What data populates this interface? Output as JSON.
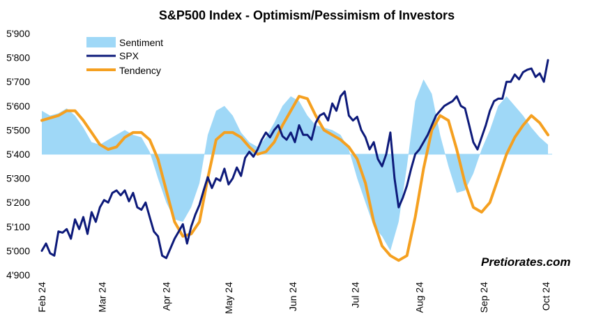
{
  "chart_data": {
    "type": "line",
    "title": "S&P500 Index - Optimism/Pessimism of Investors",
    "xlabel": "",
    "ylabel": "",
    "ylim": [
      4900,
      5900
    ],
    "y_ticks": [
      "5'900",
      "5'800",
      "5'700",
      "5'600",
      "5'500",
      "5'400",
      "5'300",
      "5'200",
      "5'100",
      "5'000",
      "4'900"
    ],
    "y_tick_values": [
      5900,
      5800,
      5700,
      5600,
      5500,
      5400,
      5300,
      5200,
      5100,
      5000,
      4900
    ],
    "xlim": [
      0,
      246
    ],
    "x_ticks": [
      "Feb 24",
      "Mar 24",
      "Apr 24",
      "May 24",
      "Jun 24",
      "Jul 24",
      "Aug 24",
      "Sep 24",
      "Oct 24"
    ],
    "x_tick_days": [
      0,
      29,
      60,
      90,
      121,
      151,
      182,
      213,
      243
    ],
    "sentiment_baseline": 5400,
    "grid": false,
    "legend_position": "top-left",
    "watermark": "Pretiorates.com",
    "colors": {
      "sentiment": "#9fd8f7",
      "spx": "#0d1a7a",
      "tendency": "#f5a020"
    },
    "series": [
      {
        "name": "Sentiment",
        "style": "area",
        "x": [
          0,
          4,
          8,
          12,
          16,
          20,
          24,
          28,
          32,
          36,
          40,
          44,
          48,
          52,
          56,
          60,
          64,
          68,
          72,
          76,
          80,
          84,
          88,
          92,
          96,
          100,
          104,
          108,
          112,
          116,
          120,
          124,
          128,
          132,
          136,
          140,
          144,
          148,
          152,
          156,
          160,
          164,
          168,
          172,
          176,
          180,
          184,
          188,
          192,
          196,
          200,
          204,
          208,
          212,
          216,
          220,
          224,
          228,
          232,
          236,
          240,
          244
        ],
        "values": [
          5580,
          5560,
          5570,
          5590,
          5560,
          5510,
          5450,
          5440,
          5460,
          5480,
          5500,
          5480,
          5470,
          5410,
          5300,
          5200,
          5130,
          5120,
          5180,
          5280,
          5480,
          5580,
          5600,
          5560,
          5490,
          5450,
          5430,
          5470,
          5530,
          5600,
          5640,
          5620,
          5560,
          5520,
          5510,
          5500,
          5480,
          5420,
          5300,
          5200,
          5100,
          5060,
          5000,
          5120,
          5350,
          5620,
          5710,
          5650,
          5480,
          5350,
          5240,
          5250,
          5320,
          5420,
          5500,
          5600,
          5640,
          5600,
          5560,
          5510,
          5470,
          5440
        ]
      },
      {
        "name": "SPX",
        "style": "line",
        "x": [
          0,
          2,
          4,
          6,
          8,
          10,
          12,
          14,
          16,
          18,
          20,
          22,
          24,
          26,
          28,
          30,
          32,
          34,
          36,
          38,
          40,
          42,
          44,
          46,
          48,
          50,
          52,
          54,
          56,
          58,
          60,
          62,
          64,
          66,
          68,
          70,
          72,
          74,
          76,
          78,
          80,
          82,
          84,
          86,
          88,
          90,
          92,
          94,
          96,
          98,
          100,
          102,
          104,
          106,
          108,
          110,
          112,
          114,
          116,
          118,
          120,
          122,
          124,
          126,
          128,
          130,
          132,
          134,
          136,
          138,
          140,
          142,
          144,
          146,
          148,
          150,
          152,
          154,
          156,
          158,
          160,
          162,
          164,
          166,
          168,
          170,
          172,
          174,
          176,
          178,
          180,
          182,
          184,
          186,
          188,
          190,
          192,
          194,
          196,
          198,
          200,
          202,
          204,
          206,
          208,
          210,
          212,
          214,
          216,
          218,
          220,
          222,
          224,
          226,
          228,
          230,
          232,
          234,
          236,
          238,
          240,
          242,
          244
        ],
        "values": [
          5000,
          5030,
          4990,
          4980,
          5080,
          5075,
          5090,
          5050,
          5130,
          5090,
          5140,
          5070,
          5160,
          5120,
          5180,
          5210,
          5200,
          5240,
          5250,
          5230,
          5250,
          5205,
          5240,
          5180,
          5170,
          5200,
          5140,
          5080,
          5060,
          4980,
          4970,
          5010,
          5050,
          5080,
          5110,
          5030,
          5100,
          5150,
          5190,
          5250,
          5305,
          5260,
          5300,
          5290,
          5340,
          5275,
          5300,
          5345,
          5310,
          5385,
          5410,
          5390,
          5420,
          5460,
          5490,
          5470,
          5500,
          5520,
          5475,
          5460,
          5490,
          5450,
          5520,
          5480,
          5480,
          5460,
          5530,
          5560,
          5570,
          5540,
          5610,
          5580,
          5640,
          5660,
          5560,
          5540,
          5555,
          5500,
          5470,
          5420,
          5450,
          5380,
          5350,
          5400,
          5490,
          5300,
          5180,
          5220,
          5270,
          5340,
          5400,
          5420,
          5450,
          5480,
          5520,
          5560,
          5580,
          5600,
          5610,
          5620,
          5640,
          5600,
          5590,
          5520,
          5450,
          5420,
          5470,
          5520,
          5580,
          5620,
          5630,
          5630,
          5700,
          5700,
          5730,
          5710,
          5740,
          5750,
          5755,
          5720,
          5735,
          5700,
          5790
        ]
      },
      {
        "name": "Tendency",
        "style": "line",
        "x": [
          0,
          4,
          8,
          12,
          16,
          20,
          24,
          28,
          32,
          36,
          40,
          44,
          48,
          52,
          56,
          60,
          64,
          68,
          72,
          76,
          80,
          84,
          88,
          92,
          96,
          100,
          104,
          108,
          112,
          116,
          120,
          124,
          128,
          132,
          136,
          140,
          144,
          148,
          152,
          156,
          160,
          164,
          168,
          172,
          176,
          180,
          184,
          188,
          192,
          196,
          200,
          204,
          208,
          212,
          216,
          220,
          224,
          228,
          232,
          236,
          240,
          244
        ],
        "values": [
          5540,
          5550,
          5560,
          5580,
          5580,
          5540,
          5490,
          5440,
          5420,
          5430,
          5470,
          5490,
          5490,
          5460,
          5380,
          5250,
          5120,
          5060,
          5070,
          5120,
          5300,
          5460,
          5490,
          5490,
          5470,
          5430,
          5400,
          5410,
          5450,
          5520,
          5580,
          5640,
          5630,
          5560,
          5500,
          5480,
          5460,
          5430,
          5380,
          5280,
          5120,
          5020,
          4980,
          4960,
          4980,
          5140,
          5340,
          5500,
          5560,
          5540,
          5420,
          5280,
          5180,
          5160,
          5200,
          5300,
          5400,
          5470,
          5520,
          5560,
          5530,
          5480
        ]
      }
    ]
  }
}
